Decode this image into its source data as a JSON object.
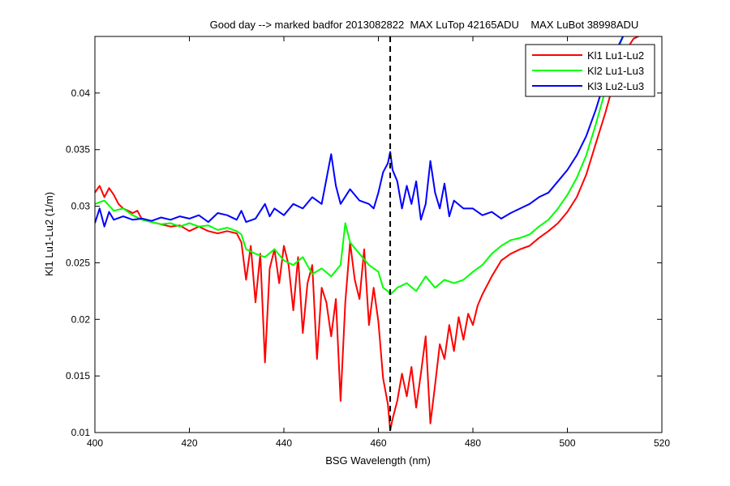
{
  "chart_data": {
    "type": "line",
    "title": "Good day --> marked badfor 2013082822  MAX LuTop 42165ADU    MAX LuBot 38998ADU",
    "xlabel": "BSG Wavelength (nm)",
    "ylabel": "Kl1 Lu1-Lu2 (1/m)",
    "xlim": [
      400,
      520
    ],
    "ylim": [
      0.01,
      0.045
    ],
    "xticks": [
      400,
      420,
      440,
      460,
      480,
      500,
      520
    ],
    "yticks": [
      0.01,
      0.015,
      0.02,
      0.025,
      0.03,
      0.035,
      0.04
    ],
    "xtick_labels": [
      "400",
      "420",
      "440",
      "460",
      "480",
      "500",
      "520"
    ],
    "ytick_labels": [
      "0.01",
      "0.015",
      "0.02",
      "0.025",
      "0.03",
      "0.035",
      "0.04"
    ],
    "grid": false,
    "legend_position": "top-right",
    "vertical_line": {
      "x": 462.5,
      "style": "dashed",
      "color": "#000000"
    },
    "series": [
      {
        "name": "Kl1 Lu1-Lu2",
        "color": "#ff0000",
        "points": [
          [
            400,
            0.0312
          ],
          [
            401,
            0.0318
          ],
          [
            402,
            0.0308
          ],
          [
            403,
            0.0316
          ],
          [
            404,
            0.031
          ],
          [
            405,
            0.0302
          ],
          [
            406,
            0.0298
          ],
          [
            407,
            0.0296
          ],
          [
            408,
            0.0294
          ],
          [
            409,
            0.0296
          ],
          [
            410,
            0.0288
          ],
          [
            412,
            0.0286
          ],
          [
            414,
            0.0284
          ],
          [
            416,
            0.0282
          ],
          [
            418,
            0.0283
          ],
          [
            420,
            0.0278
          ],
          [
            422,
            0.0282
          ],
          [
            424,
            0.0278
          ],
          [
            426,
            0.0276
          ],
          [
            428,
            0.0278
          ],
          [
            430,
            0.0276
          ],
          [
            431,
            0.0268
          ],
          [
            432,
            0.0235
          ],
          [
            433,
            0.0265
          ],
          [
            434,
            0.0215
          ],
          [
            435,
            0.0258
          ],
          [
            436,
            0.0162
          ],
          [
            437,
            0.0245
          ],
          [
            438,
            0.0262
          ],
          [
            439,
            0.0232
          ],
          [
            440,
            0.0265
          ],
          [
            441,
            0.0248
          ],
          [
            442,
            0.0208
          ],
          [
            443,
            0.0255
          ],
          [
            444,
            0.0188
          ],
          [
            445,
            0.0232
          ],
          [
            446,
            0.0248
          ],
          [
            447,
            0.0165
          ],
          [
            448,
            0.0228
          ],
          [
            449,
            0.0215
          ],
          [
            450,
            0.0185
          ],
          [
            451,
            0.0218
          ],
          [
            452,
            0.0128
          ],
          [
            453,
            0.0215
          ],
          [
            454,
            0.0268
          ],
          [
            455,
            0.0235
          ],
          [
            456,
            0.0218
          ],
          [
            457,
            0.0262
          ],
          [
            458,
            0.0195
          ],
          [
            459,
            0.0228
          ],
          [
            460,
            0.0198
          ],
          [
            461,
            0.0148
          ],
          [
            462,
            0.0125
          ],
          [
            462.5,
            0.0102
          ],
          [
            463,
            0.0112
          ],
          [
            464,
            0.0128
          ],
          [
            465,
            0.0152
          ],
          [
            466,
            0.0132
          ],
          [
            467,
            0.0158
          ],
          [
            468,
            0.0122
          ],
          [
            469,
            0.0152
          ],
          [
            470,
            0.0185
          ],
          [
            471,
            0.0108
          ],
          [
            472,
            0.0142
          ],
          [
            473,
            0.0178
          ],
          [
            474,
            0.0165
          ],
          [
            475,
            0.0195
          ],
          [
            476,
            0.0172
          ],
          [
            477,
            0.0202
          ],
          [
            478,
            0.0182
          ],
          [
            479,
            0.0205
          ],
          [
            480,
            0.0195
          ],
          [
            481,
            0.0212
          ],
          [
            482,
            0.0222
          ],
          [
            484,
            0.0238
          ],
          [
            486,
            0.0252
          ],
          [
            488,
            0.0258
          ],
          [
            490,
            0.0262
          ],
          [
            492,
            0.0265
          ],
          [
            494,
            0.0272
          ],
          [
            496,
            0.0278
          ],
          [
            498,
            0.0285
          ],
          [
            500,
            0.0295
          ],
          [
            502,
            0.0308
          ],
          [
            504,
            0.0328
          ],
          [
            506,
            0.0355
          ],
          [
            508,
            0.0382
          ],
          [
            510,
            0.0412
          ],
          [
            512,
            0.0435
          ],
          [
            514,
            0.0448
          ],
          [
            516,
            0.0452
          ]
        ]
      },
      {
        "name": "Kl2 Lu1-Lu3",
        "color": "#00ff00",
        "points": [
          [
            400,
            0.0302
          ],
          [
            402,
            0.0305
          ],
          [
            404,
            0.0296
          ],
          [
            406,
            0.0298
          ],
          [
            408,
            0.0292
          ],
          [
            410,
            0.0288
          ],
          [
            412,
            0.0286
          ],
          [
            414,
            0.0284
          ],
          [
            416,
            0.0285
          ],
          [
            418,
            0.0282
          ],
          [
            420,
            0.0285
          ],
          [
            422,
            0.0282
          ],
          [
            424,
            0.0283
          ],
          [
            426,
            0.0279
          ],
          [
            428,
            0.0281
          ],
          [
            430,
            0.0278
          ],
          [
            431,
            0.0275
          ],
          [
            432,
            0.0262
          ],
          [
            434,
            0.0258
          ],
          [
            436,
            0.0255
          ],
          [
            438,
            0.0262
          ],
          [
            440,
            0.0252
          ],
          [
            442,
            0.0248
          ],
          [
            444,
            0.0255
          ],
          [
            446,
            0.024
          ],
          [
            448,
            0.0245
          ],
          [
            450,
            0.0238
          ],
          [
            452,
            0.0248
          ],
          [
            453,
            0.0285
          ],
          [
            454,
            0.0268
          ],
          [
            456,
            0.0258
          ],
          [
            458,
            0.0248
          ],
          [
            460,
            0.0242
          ],
          [
            461,
            0.0228
          ],
          [
            462,
            0.0225
          ],
          [
            462.5,
            0.0222
          ],
          [
            464,
            0.0228
          ],
          [
            466,
            0.0232
          ],
          [
            468,
            0.0225
          ],
          [
            470,
            0.0238
          ],
          [
            472,
            0.0228
          ],
          [
            474,
            0.0235
          ],
          [
            476,
            0.0232
          ],
          [
            478,
            0.0235
          ],
          [
            480,
            0.0242
          ],
          [
            482,
            0.0248
          ],
          [
            484,
            0.0258
          ],
          [
            486,
            0.0265
          ],
          [
            488,
            0.027
          ],
          [
            490,
            0.0272
          ],
          [
            492,
            0.0275
          ],
          [
            494,
            0.0282
          ],
          [
            496,
            0.0288
          ],
          [
            498,
            0.0298
          ],
          [
            500,
            0.031
          ],
          [
            502,
            0.0325
          ],
          [
            504,
            0.0345
          ],
          [
            506,
            0.0372
          ],
          [
            508,
            0.0402
          ],
          [
            510,
            0.0432
          ],
          [
            512,
            0.0452
          ]
        ]
      },
      {
        "name": "Kl3 Lu2-Lu3",
        "color": "#0000ff",
        "points": [
          [
            400,
            0.0285
          ],
          [
            401,
            0.0298
          ],
          [
            402,
            0.0282
          ],
          [
            403,
            0.0295
          ],
          [
            404,
            0.0288
          ],
          [
            406,
            0.0291
          ],
          [
            408,
            0.0288
          ],
          [
            410,
            0.0289
          ],
          [
            412,
            0.0287
          ],
          [
            414,
            0.029
          ],
          [
            416,
            0.0288
          ],
          [
            418,
            0.0291
          ],
          [
            420,
            0.0289
          ],
          [
            422,
            0.0292
          ],
          [
            424,
            0.0286
          ],
          [
            426,
            0.0294
          ],
          [
            428,
            0.0292
          ],
          [
            430,
            0.0288
          ],
          [
            431,
            0.0296
          ],
          [
            432,
            0.0286
          ],
          [
            434,
            0.0289
          ],
          [
            436,
            0.0302
          ],
          [
            437,
            0.0291
          ],
          [
            438,
            0.0298
          ],
          [
            440,
            0.0292
          ],
          [
            442,
            0.0302
          ],
          [
            444,
            0.0298
          ],
          [
            446,
            0.0308
          ],
          [
            448,
            0.0302
          ],
          [
            450,
            0.0346
          ],
          [
            451,
            0.0318
          ],
          [
            452,
            0.0302
          ],
          [
            454,
            0.0315
          ],
          [
            456,
            0.0305
          ],
          [
            458,
            0.0302
          ],
          [
            459,
            0.0298
          ],
          [
            460,
            0.0312
          ],
          [
            461,
            0.033
          ],
          [
            462,
            0.0338
          ],
          [
            462.5,
            0.0348
          ],
          [
            463,
            0.0332
          ],
          [
            464,
            0.0322
          ],
          [
            465,
            0.0298
          ],
          [
            466,
            0.0318
          ],
          [
            467,
            0.0302
          ],
          [
            468,
            0.0322
          ],
          [
            469,
            0.0288
          ],
          [
            470,
            0.0302
          ],
          [
            471,
            0.034
          ],
          [
            472,
            0.0312
          ],
          [
            473,
            0.0298
          ],
          [
            474,
            0.032
          ],
          [
            475,
            0.0291
          ],
          [
            476,
            0.0305
          ],
          [
            478,
            0.0298
          ],
          [
            480,
            0.0298
          ],
          [
            482,
            0.0292
          ],
          [
            484,
            0.0295
          ],
          [
            486,
            0.0289
          ],
          [
            488,
            0.0294
          ],
          [
            490,
            0.0298
          ],
          [
            492,
            0.0302
          ],
          [
            494,
            0.0308
          ],
          [
            496,
            0.0312
          ],
          [
            498,
            0.0322
          ],
          [
            500,
            0.0332
          ],
          [
            502,
            0.0345
          ],
          [
            504,
            0.0362
          ],
          [
            506,
            0.0385
          ],
          [
            508,
            0.0412
          ],
          [
            510,
            0.0435
          ],
          [
            512,
            0.0452
          ]
        ]
      }
    ]
  }
}
